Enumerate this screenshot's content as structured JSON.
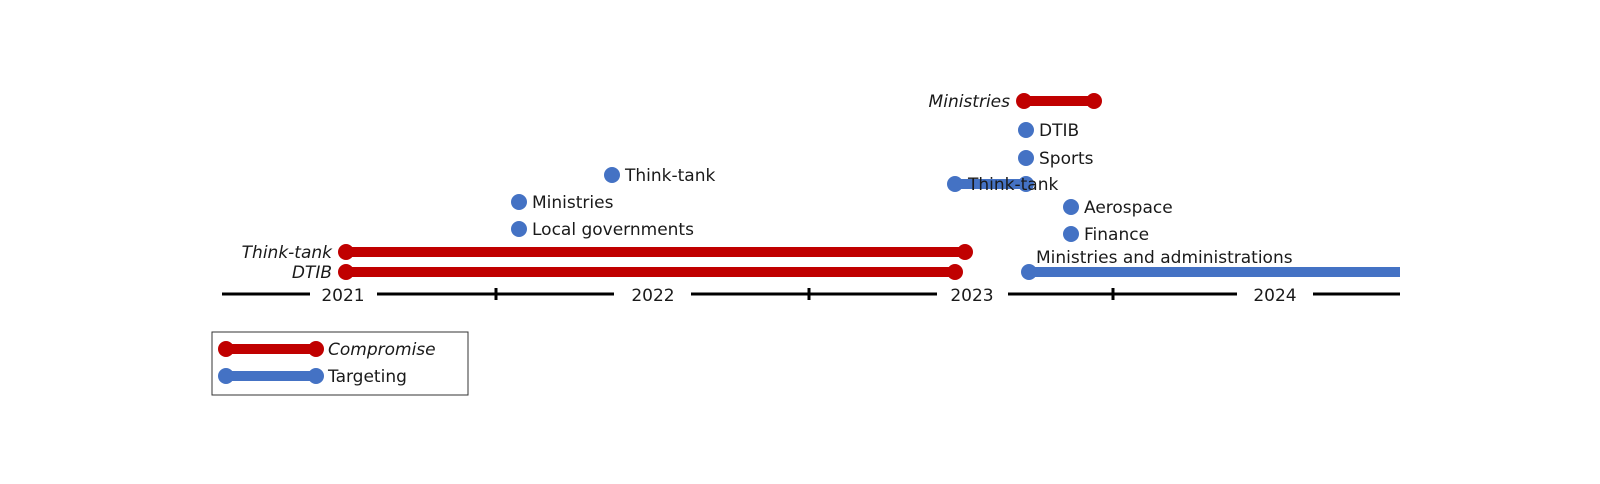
{
  "colors": {
    "compromise": "#c00000",
    "targeting": "#4472c4",
    "axis": "#000000",
    "text": "#1a1a1a"
  },
  "axis": {
    "years": [
      "2021",
      "2022",
      "2023",
      "2024"
    ]
  },
  "events": [
    {
      "id": "ministries-compromise-2023",
      "label": "Ministries",
      "type": "compromise",
      "label_side": "left",
      "italic": true
    },
    {
      "id": "dtib-targeting-2023",
      "label": "DTIB",
      "type": "targeting",
      "label_side": "right",
      "italic": false
    },
    {
      "id": "sports-targeting-2023",
      "label": "Sports",
      "type": "targeting",
      "label_side": "right",
      "italic": false
    },
    {
      "id": "thinktank-targeting-2023",
      "label": "Think-tank",
      "type": "targeting",
      "label_side": "right",
      "italic": false
    },
    {
      "id": "aerospace-targeting-2023",
      "label": "Aerospace",
      "type": "targeting",
      "label_side": "right",
      "italic": false
    },
    {
      "id": "finance-targeting-2023",
      "label": "Finance",
      "type": "targeting",
      "label_side": "right",
      "italic": false
    },
    {
      "id": "ministries-admin-targeting",
      "label": "Ministries and administrations",
      "type": "targeting",
      "label_side": "above",
      "italic": false
    },
    {
      "id": "thinktank-targeting-2022",
      "label": "Think-tank",
      "type": "targeting",
      "label_side": "right",
      "italic": false
    },
    {
      "id": "ministries-targeting-2022",
      "label": "Ministries",
      "type": "targeting",
      "label_side": "right",
      "italic": false
    },
    {
      "id": "local-gov-targeting-2022",
      "label": "Local governments",
      "type": "targeting",
      "label_side": "right",
      "italic": false
    },
    {
      "id": "thinktank-compromise",
      "label": "Think-tank",
      "type": "compromise",
      "label_side": "left",
      "italic": true
    },
    {
      "id": "dtib-compromise",
      "label": "DTIB",
      "type": "compromise",
      "label_side": "left",
      "italic": true
    }
  ],
  "legend": [
    {
      "label": "Compromise",
      "type": "compromise",
      "italic": true
    },
    {
      "label": "Targeting",
      "type": "targeting",
      "italic": false
    }
  ]
}
